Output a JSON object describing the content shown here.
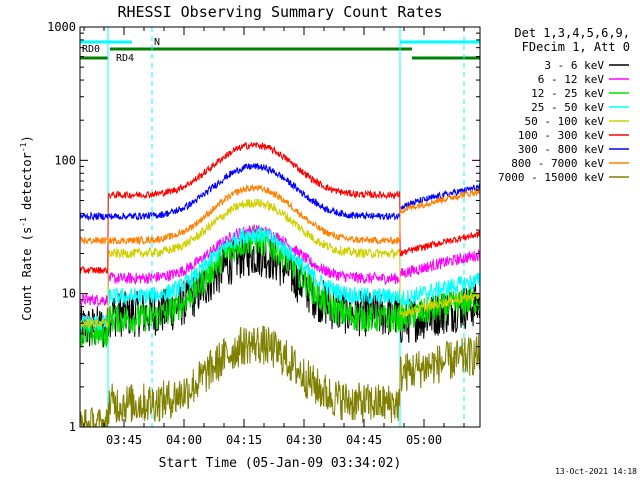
{
  "chart_data": {
    "type": "line",
    "title": "RHESSI Observing Summary Count Rates",
    "xlabel": "Start Time (05-Jan-09 03:34:02)",
    "ylabel": "Count Rate (s⁻¹ detector⁻¹)",
    "ylabel_parts": [
      "Count Rate (s",
      "-1",
      " detector",
      "-1",
      ")"
    ],
    "x_ticks": [
      "03:45",
      "04:00",
      "04:15",
      "04:30",
      "04:45",
      "05:00"
    ],
    "x_tick_minutes": [
      11,
      26,
      41,
      56,
      71,
      86
    ],
    "xlim_minutes": [
      0,
      100
    ],
    "y_scale": "log",
    "ylim": [
      1,
      1000
    ],
    "y_tick_labels": [
      "1",
      "10",
      "100",
      "1000"
    ],
    "legend_header": [
      "Det 1,3,4,5,6,9,",
      "FDecim 1, Att 0"
    ],
    "legend_position": "right",
    "timestamp": "13-Oct-2021 14:18",
    "night_intervals": [
      [
        0,
        7
      ],
      [
        80,
        100
      ]
    ],
    "saa_intervals": [],
    "flag_labels": {
      "rd0": "RD0",
      "rd4": "RD4",
      "n": "N"
    },
    "series": [
      {
        "name": "3 - 6 keV",
        "color": "#000000",
        "base": 7.0,
        "peak": 20,
        "pre": 5.5,
        "post": 6.0,
        "noise": 0.4
      },
      {
        "name": "6 - 12 keV",
        "color": "#ff00ff",
        "base": 13.0,
        "peak": 30,
        "pre": 9.0,
        "post": 14.0,
        "noise": 0.1
      },
      {
        "name": "12 - 25 keV",
        "color": "#00e000",
        "base": 6.5,
        "peak": 25,
        "pre": 5.0,
        "post": 6.5,
        "noise": 0.25
      },
      {
        "name": "25 - 50 keV",
        "color": "#00ffff",
        "base": 9.5,
        "peak": 28,
        "pre": 6.0,
        "post": 9.0,
        "noise": 0.15
      },
      {
        "name": "50 - 100 keV",
        "color": "#d0d000",
        "base": 20.0,
        "peak": 48,
        "pre": 6.0,
        "post": 7.0,
        "noise": 0.08
      },
      {
        "name": "100 - 300 keV",
        "color": "#ff0000",
        "base": 55.0,
        "peak": 130,
        "pre": 15.0,
        "post": 20.0,
        "noise": 0.06
      },
      {
        "name": "300 - 800 keV",
        "color": "#0000ff",
        "base": 38.0,
        "peak": 90,
        "pre": 38.0,
        "post": 45.0,
        "noise": 0.06
      },
      {
        "name": "800 - 7000 keV",
        "color": "#ff8000",
        "base": 25.0,
        "peak": 62,
        "pre": 25.0,
        "post": 42.0,
        "noise": 0.06
      },
      {
        "name": "7000 - 15000 keV",
        "color": "#808000",
        "base": 1.5,
        "peak": 4.2,
        "pre": 1.0,
        "post": 2.5,
        "noise": 0.35
      }
    ]
  }
}
